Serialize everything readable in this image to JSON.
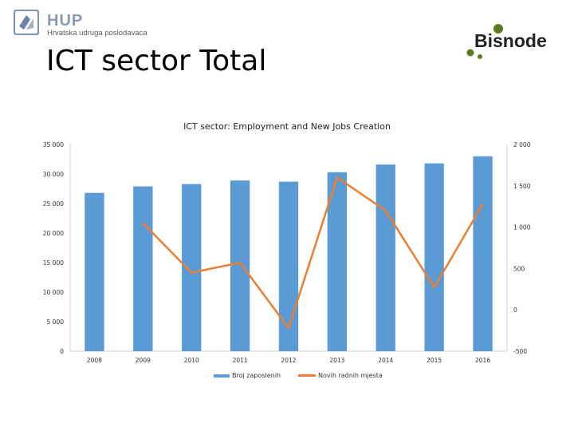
{
  "header": {
    "org_name": "HUP",
    "org_subtitle": "Hrvatska udruga poslodavaca",
    "brand_name": "Bisnode",
    "slide_title": "ICT sector Total"
  },
  "chart_data": {
    "type": "bar",
    "title": "ICT sector: Employment and New Jobs Creation",
    "categories": [
      "2008",
      "2009",
      "2010",
      "2011",
      "2012",
      "2013",
      "2014",
      "2015",
      "2016"
    ],
    "left_axis": {
      "ylim": [
        0,
        35000
      ],
      "ticks": [
        "0",
        "5 000",
        "10 000",
        "15 000",
        "20 000",
        "25 000",
        "30 000",
        "35 000"
      ]
    },
    "right_axis": {
      "ylim": [
        -500,
        2000
      ],
      "ticks": [
        "-500",
        "0",
        "500",
        "1 000",
        "1 500",
        "2 000"
      ]
    },
    "series": [
      {
        "name": "Broj zaposlenih",
        "type": "bar",
        "axis": "left",
        "color": "#5b9bd5",
        "values": [
          26800,
          27900,
          28300,
          28900,
          28700,
          30300,
          31600,
          31800,
          33000
        ]
      },
      {
        "name": "Novih radnih mjesta",
        "type": "line",
        "axis": "right",
        "color": "#ed7d31",
        "values": [
          null,
          1050,
          450,
          570,
          -220,
          1600,
          1200,
          270,
          1280
        ]
      }
    ],
    "grid": false,
    "legend_position": "bottom"
  }
}
